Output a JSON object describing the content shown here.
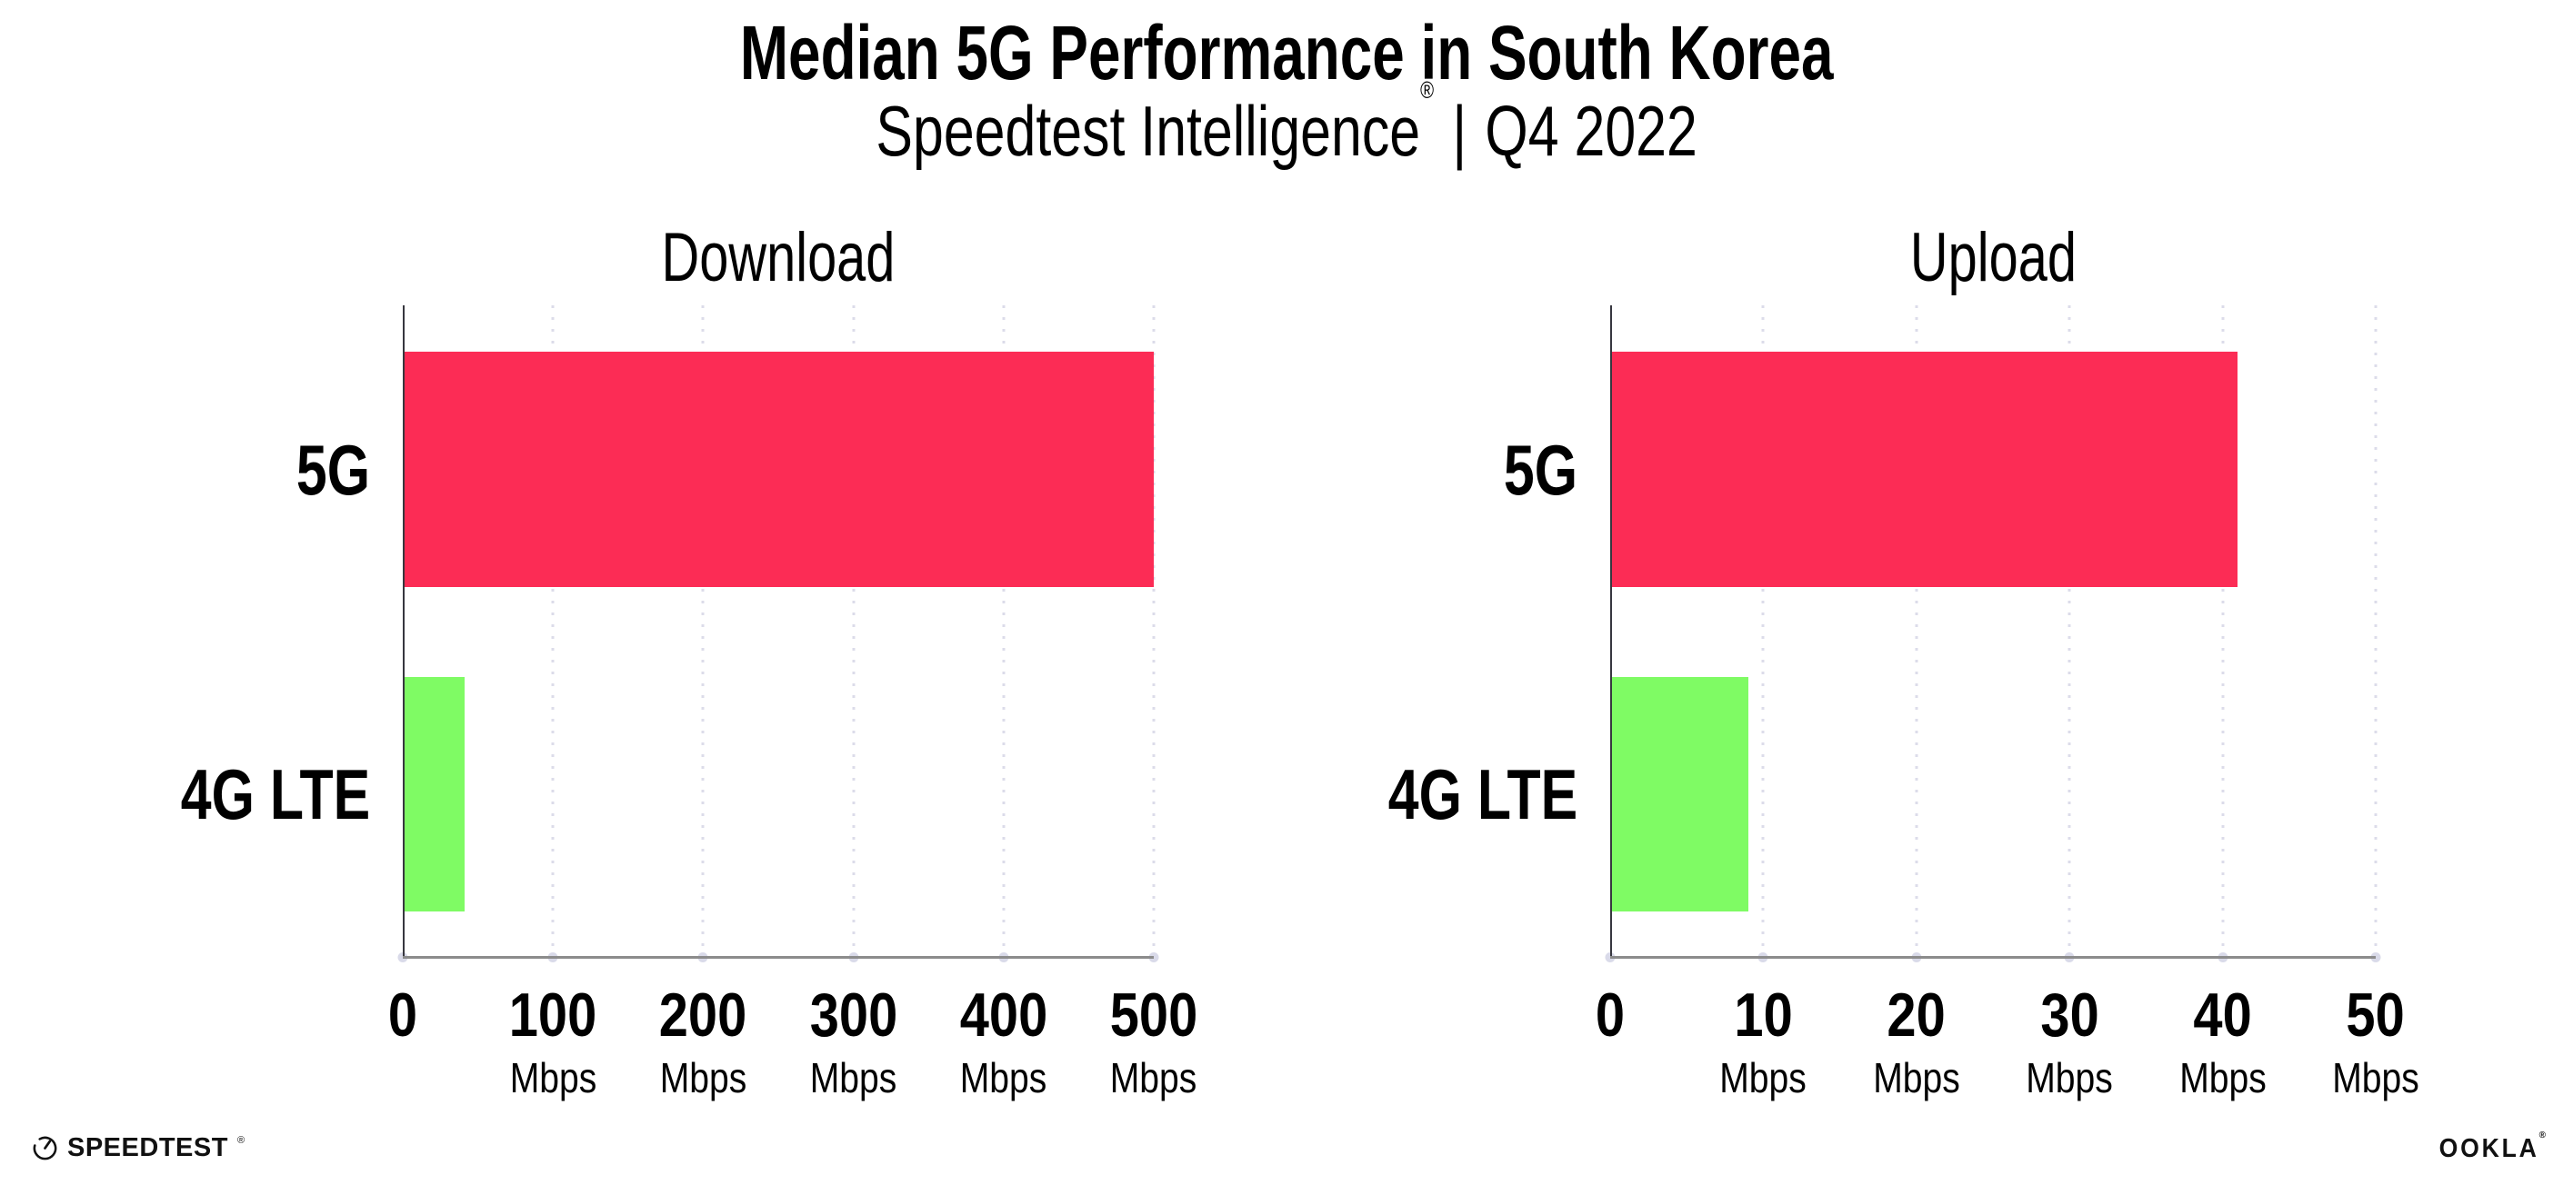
{
  "header": {
    "title": "Median 5G Performance in South Korea",
    "subtitle_brand": "Speedtest Intelligence",
    "subtitle_trademark": "®",
    "subtitle_separator": "|",
    "subtitle_period": "Q4 2022"
  },
  "colors": {
    "bar_5g": "#FC2C55",
    "bar_4g_lte": "#7FFB64",
    "y_axis": "#37373F",
    "x_axis": "#8C8C8C",
    "gridline_dots": "#DCDCEA",
    "tick_dots": "#D9DAE9",
    "text": "#000000"
  },
  "chart_data": [
    {
      "type": "bar",
      "orientation": "horizontal",
      "title": "Download",
      "categories": [
        "5G",
        "4G LTE"
      ],
      "values": [
        500,
        41
      ],
      "unit": "Mbps",
      "xlim": [
        0,
        500
      ],
      "xticks": [
        0,
        100,
        200,
        300,
        400,
        500
      ],
      "grid": "dotted-vertical",
      "legend": "none",
      "bar_colors": [
        "#FC2C55",
        "#7FFB64"
      ],
      "tick_labels": [
        {
          "value": "0",
          "unit": ""
        },
        {
          "value": "100",
          "unit": "Mbps"
        },
        {
          "value": "200",
          "unit": "Mbps"
        },
        {
          "value": "300",
          "unit": "Mbps"
        },
        {
          "value": "400",
          "unit": "Mbps"
        },
        {
          "value": "500",
          "unit": "Mbps"
        }
      ]
    },
    {
      "type": "bar",
      "orientation": "horizontal",
      "title": "Upload",
      "categories": [
        "5G",
        "4G LTE"
      ],
      "values": [
        41,
        9
      ],
      "unit": "Mbps",
      "xlim": [
        0,
        50
      ],
      "xticks": [
        0,
        10,
        20,
        30,
        40,
        50
      ],
      "grid": "dotted-vertical",
      "legend": "none",
      "bar_colors": [
        "#FC2C55",
        "#7FFB64"
      ],
      "tick_labels": [
        {
          "value": "0",
          "unit": ""
        },
        {
          "value": "10",
          "unit": "Mbps"
        },
        {
          "value": "20",
          "unit": "Mbps"
        },
        {
          "value": "30",
          "unit": "Mbps"
        },
        {
          "value": "40",
          "unit": "Mbps"
        },
        {
          "value": "50",
          "unit": "Mbps"
        }
      ]
    }
  ],
  "footer": {
    "speedtest_wordmark": "SPEEDTEST",
    "speedtest_trademark": "®",
    "ookla_wordmark": "OOKLA",
    "ookla_trademark": "®"
  }
}
